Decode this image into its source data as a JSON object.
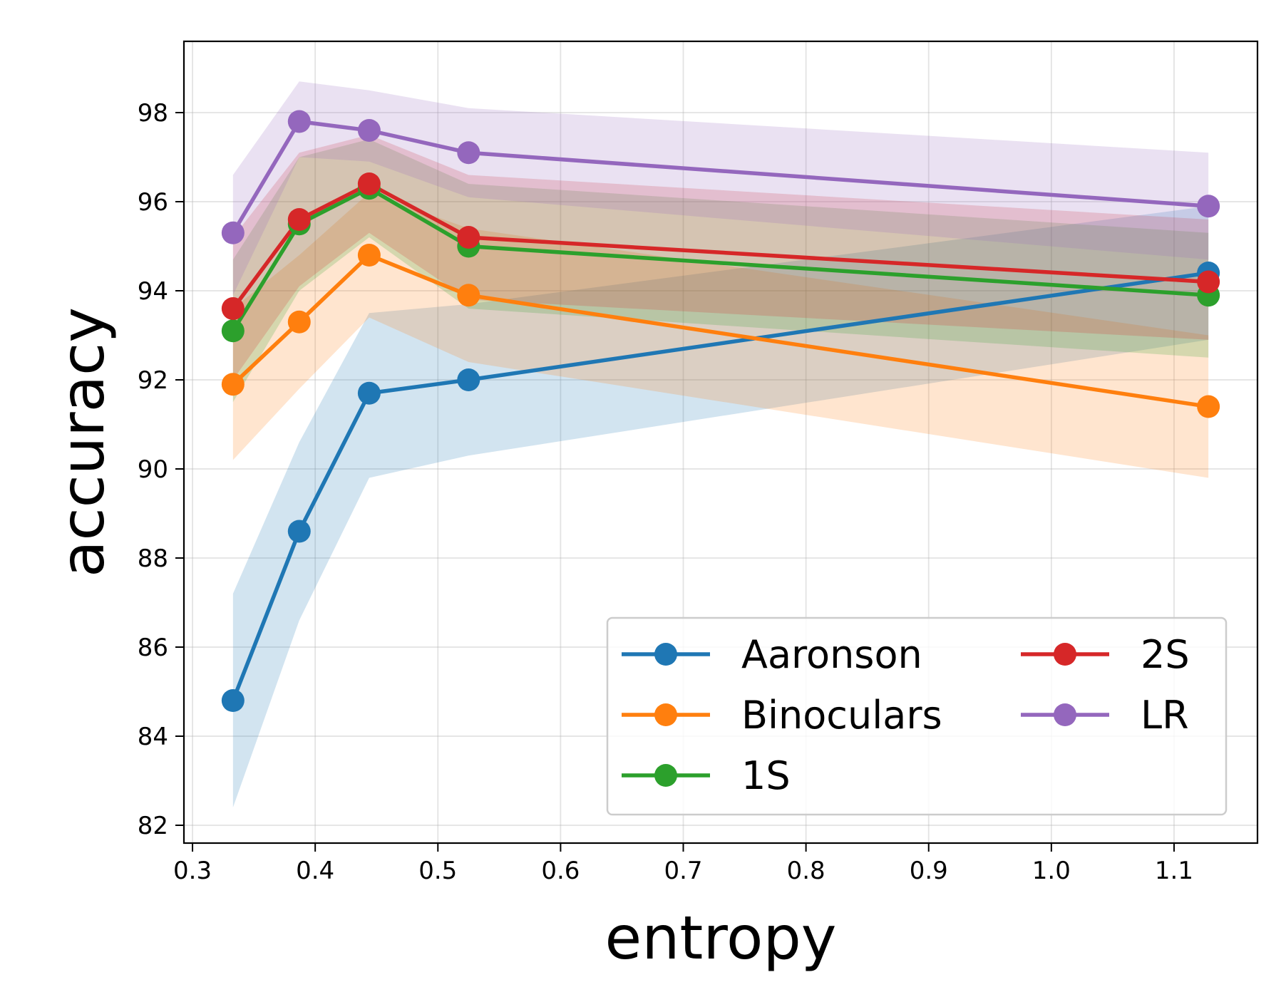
{
  "chart_data": {
    "type": "line",
    "title": "",
    "xlabel": "entropy",
    "ylabel": "accuracy",
    "xlim": [
      0.293,
      1.168
    ],
    "ylim": [
      81.6,
      99.6
    ],
    "xticks": [
      0.3,
      0.4,
      0.5,
      0.6,
      0.7,
      0.8,
      0.9,
      1.0,
      1.1
    ],
    "xtick_labels": [
      "0.3",
      "0.4",
      "0.5",
      "0.6",
      "0.7",
      "0.8",
      "0.9",
      "1.0",
      "1.1"
    ],
    "yticks": [
      82,
      84,
      86,
      88,
      90,
      92,
      94,
      96,
      98
    ],
    "ytick_labels": [
      "82",
      "84",
      "86",
      "88",
      "90",
      "92",
      "94",
      "96",
      "98"
    ],
    "grid": true,
    "legend_position": "lower-right",
    "legend_columns": 2,
    "x": [
      0.333,
      0.387,
      0.444,
      0.525,
      1.128
    ],
    "series": [
      {
        "name": "Aaronson",
        "color": "#1f77b4",
        "values": [
          84.8,
          88.6,
          91.7,
          92.0,
          94.4
        ],
        "lower": [
          82.4,
          86.6,
          89.8,
          90.3,
          92.9
        ],
        "upper": [
          87.2,
          90.6,
          93.5,
          93.7,
          95.9
        ]
      },
      {
        "name": "Binoculars",
        "color": "#ff7f0e",
        "values": [
          91.9,
          93.3,
          94.8,
          93.9,
          91.4
        ],
        "lower": [
          90.2,
          91.8,
          93.4,
          92.4,
          89.8
        ],
        "upper": [
          93.6,
          94.8,
          96.2,
          95.4,
          93.0
        ]
      },
      {
        "name": "1S",
        "color": "#2ca02c",
        "values": [
          93.1,
          95.5,
          96.3,
          95.0,
          93.9
        ],
        "lower": [
          91.5,
          94.0,
          95.2,
          93.6,
          92.5
        ],
        "upper": [
          94.7,
          97.0,
          97.4,
          96.4,
          95.3
        ]
      },
      {
        "name": "2S",
        "color": "#d62728",
        "values": [
          93.6,
          95.6,
          96.4,
          95.2,
          94.2
        ],
        "lower": [
          92.0,
          94.1,
          95.3,
          93.8,
          92.9
        ],
        "upper": [
          95.2,
          97.1,
          97.5,
          96.6,
          95.6
        ]
      },
      {
        "name": "LR",
        "color": "#9467bd",
        "values": [
          95.3,
          97.8,
          97.6,
          97.1,
          95.9
        ],
        "lower": [
          93.9,
          97.0,
          96.9,
          96.1,
          94.7
        ],
        "upper": [
          96.6,
          98.7,
          98.5,
          98.1,
          97.1
        ]
      }
    ]
  }
}
